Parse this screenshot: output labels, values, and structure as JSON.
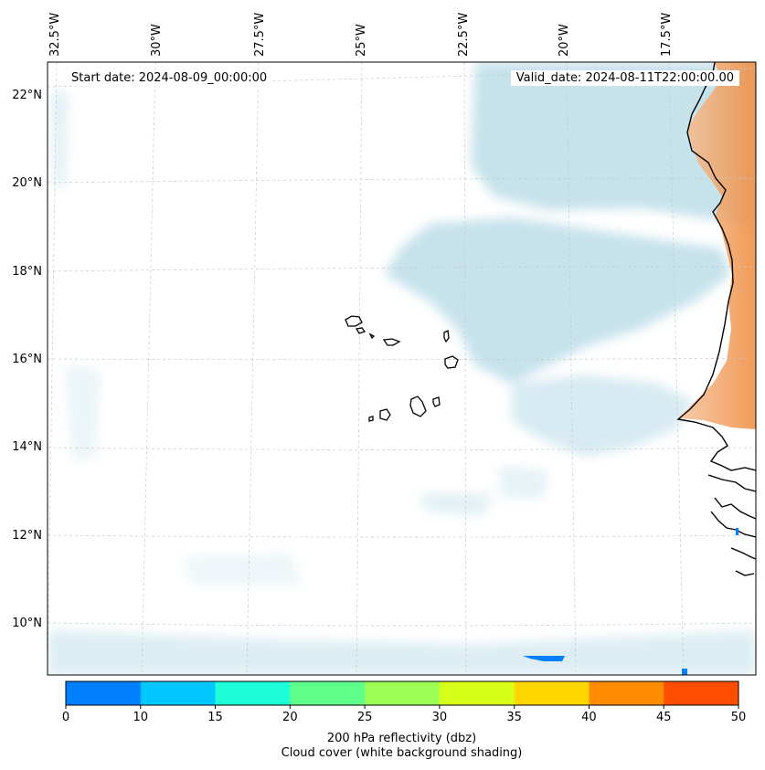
{
  "map": {
    "longitude_labels": [
      "32.5°W",
      "30°W",
      "27.5°W",
      "25°W",
      "22.5°W",
      "20°W",
      "17.5°W"
    ],
    "latitude_labels": [
      "22°N",
      "20°N",
      "18°N",
      "16°N",
      "14°N",
      "12°N",
      "10°N"
    ],
    "start_date": "Start date: 2024-08-09_00:00:00",
    "valid_date": "Valid_date: 2024-08-11T22:00:00.00",
    "cloud_color": "#a9d4e2",
    "reflectivity_color_land": "#f08c3c"
  },
  "colorbar": {
    "ticks": [
      "0",
      "10",
      "15",
      "20",
      "25",
      "30",
      "35",
      "40",
      "45",
      "50"
    ],
    "colors": [
      "#0080ff",
      "#00c8ff",
      "#1effd9",
      "#5fff8b",
      "#9dff53",
      "#d8ff1a",
      "#ffd600",
      "#ff8c00",
      "#ff4e00"
    ],
    "label_line1": "200 hPa reflectivity (dbz)",
    "label_line2": "Cloud cover (white background shading)"
  }
}
